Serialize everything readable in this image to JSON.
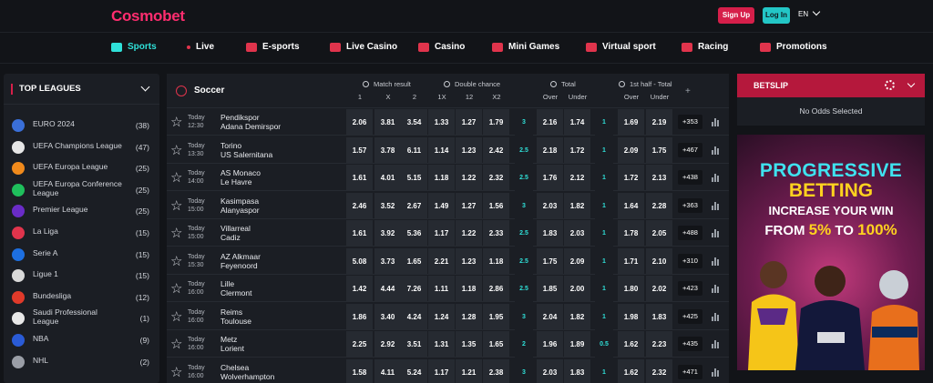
{
  "brand": {
    "logo_a": "Cosmo",
    "logo_b": "bet"
  },
  "header": {
    "signup": "Sign Up",
    "login": "Log In",
    "language": "EN"
  },
  "nav": [
    {
      "label": "Sports",
      "icon": "soccer-ball-icon",
      "active": true
    },
    {
      "label": "Live",
      "icon": "live-dot-icon"
    },
    {
      "label": "E-sports",
      "icon": "esports-icon"
    },
    {
      "label": "Live Casino",
      "icon": "cards-icon"
    },
    {
      "label": "Casino",
      "icon": "casino-icon"
    },
    {
      "label": "Mini Games",
      "icon": "joystick-icon"
    },
    {
      "label": "Virtual sport",
      "icon": "checkered-flag-icon"
    },
    {
      "label": "Racing",
      "icon": "horse-icon"
    },
    {
      "label": "Promotions",
      "icon": "promo-icon"
    }
  ],
  "leagues": {
    "title": "TOP LEAGUES",
    "items": [
      {
        "name": "EURO 2024",
        "count": "(38)",
        "color": "#3a6fd8"
      },
      {
        "name": "UEFA Champions League",
        "count": "(47)",
        "color": "#e6e6e6"
      },
      {
        "name": "UEFA Europa League",
        "count": "(25)",
        "color": "#f08a1c"
      },
      {
        "name": "UEFA Europa Conference League",
        "count": "(25)",
        "color": "#1fbf5c"
      },
      {
        "name": "Premier League",
        "count": "(25)",
        "color": "#6a2cc7"
      },
      {
        "name": "La Liga",
        "count": "(15)",
        "color": "#e0344c"
      },
      {
        "name": "Serie A",
        "count": "(15)",
        "color": "#1d6fe0"
      },
      {
        "name": "Ligue 1",
        "count": "(15)",
        "color": "#d9d9d9"
      },
      {
        "name": "Bundesliga",
        "count": "(12)",
        "color": "#e03a2a"
      },
      {
        "name": "Saudi Professional League",
        "count": "(1)",
        "color": "#e8e8e8"
      },
      {
        "name": "NBA",
        "count": "(9)",
        "color": "#2a5bd6"
      },
      {
        "name": "NHL",
        "count": "(2)",
        "color": "#9a9ea6"
      }
    ]
  },
  "main": {
    "sport": "Soccer",
    "groups": [
      "Match result",
      "Double chance",
      "Total",
      "1st half - Total"
    ],
    "sub": [
      "1",
      "X",
      "2",
      "1X",
      "12",
      "X2",
      "Over",
      "Under",
      "Over",
      "Under"
    ],
    "plus": "+",
    "matches": [
      {
        "day": "Today",
        "time": "12:30",
        "home": "Pendikspor",
        "away": "Adana Demirspor",
        "odds": [
          "2.06",
          "3.81",
          "3.54",
          "1.33",
          "1.27",
          "1.79"
        ],
        "total_line": "3",
        "total": [
          "2.16",
          "1.74"
        ],
        "half_line": "1",
        "half": [
          "1.69",
          "2.19"
        ],
        "more": "+353"
      },
      {
        "day": "Today",
        "time": "13:30",
        "home": "Torino",
        "away": "US Salernitana",
        "odds": [
          "1.57",
          "3.78",
          "6.11",
          "1.14",
          "1.23",
          "2.42"
        ],
        "total_line": "2.5",
        "total": [
          "2.18",
          "1.72"
        ],
        "half_line": "1",
        "half": [
          "2.09",
          "1.75"
        ],
        "more": "+467"
      },
      {
        "day": "Today",
        "time": "14:00",
        "home": "AS Monaco",
        "away": "Le Havre",
        "odds": [
          "1.61",
          "4.01",
          "5.15",
          "1.18",
          "1.22",
          "2.32"
        ],
        "total_line": "2.5",
        "total": [
          "1.76",
          "2.12"
        ],
        "half_line": "1",
        "half": [
          "1.72",
          "2.13"
        ],
        "more": "+438"
      },
      {
        "day": "Today",
        "time": "15:00",
        "home": "Kasimpasa",
        "away": "Alanyaspor",
        "odds": [
          "2.46",
          "3.52",
          "2.67",
          "1.49",
          "1.27",
          "1.56"
        ],
        "total_line": "3",
        "total": [
          "2.03",
          "1.82"
        ],
        "half_line": "1",
        "half": [
          "1.64",
          "2.28"
        ],
        "more": "+363"
      },
      {
        "day": "Today",
        "time": "15:00",
        "home": "Villarreal",
        "away": "Cadiz",
        "odds": [
          "1.61",
          "3.92",
          "5.36",
          "1.17",
          "1.22",
          "2.33"
        ],
        "total_line": "2.5",
        "total": [
          "1.83",
          "2.03"
        ],
        "half_line": "1",
        "half": [
          "1.78",
          "2.05"
        ],
        "more": "+488"
      },
      {
        "day": "Today",
        "time": "15:30",
        "home": "AZ Alkmaar",
        "away": "Feyenoord",
        "odds": [
          "5.08",
          "3.73",
          "1.65",
          "2.21",
          "1.23",
          "1.18"
        ],
        "total_line": "2.5",
        "total": [
          "1.75",
          "2.09"
        ],
        "half_line": "1",
        "half": [
          "1.71",
          "2.10"
        ],
        "more": "+310"
      },
      {
        "day": "Today",
        "time": "16:00",
        "home": "Lille",
        "away": "Clermont",
        "odds": [
          "1.42",
          "4.44",
          "7.26",
          "1.11",
          "1.18",
          "2.86"
        ],
        "total_line": "2.5",
        "total": [
          "1.85",
          "2.00"
        ],
        "half_line": "1",
        "half": [
          "1.80",
          "2.02"
        ],
        "more": "+423"
      },
      {
        "day": "Today",
        "time": "16:00",
        "home": "Reims",
        "away": "Toulouse",
        "odds": [
          "1.86",
          "3.40",
          "4.24",
          "1.24",
          "1.28",
          "1.95"
        ],
        "total_line": "3",
        "total": [
          "2.04",
          "1.82"
        ],
        "half_line": "1",
        "half": [
          "1.98",
          "1.83"
        ],
        "more": "+425"
      },
      {
        "day": "Today",
        "time": "16:00",
        "home": "Metz",
        "away": "Lorient",
        "odds": [
          "2.25",
          "2.92",
          "3.51",
          "1.31",
          "1.35",
          "1.65"
        ],
        "total_line": "2",
        "total": [
          "1.96",
          "1.89"
        ],
        "half_line": "0.5",
        "half": [
          "1.62",
          "2.23"
        ],
        "more": "+435"
      },
      {
        "day": "Today",
        "time": "16:00",
        "home": "Chelsea",
        "away": "Wolverhampton",
        "odds": [
          "1.58",
          "4.11",
          "5.24",
          "1.17",
          "1.21",
          "2.38"
        ],
        "total_line": "3",
        "total": [
          "2.03",
          "1.83"
        ],
        "half_line": "1",
        "half": [
          "1.62",
          "2.32"
        ],
        "more": "+471"
      }
    ]
  },
  "betslip": {
    "title": "BETSLIP",
    "empty": "No Odds Selected"
  },
  "banner": {
    "line1": "PROGRESSIVE",
    "line2": "BETTING",
    "line3": "INCREASE YOUR WIN",
    "line4_a": "FROM ",
    "line4_b": "5%",
    "line4_c": " TO ",
    "line4_d": "100%"
  },
  "colors": {
    "accent": "#2fe0d8",
    "brand": "#d61f4a",
    "panel": "#1b1e24",
    "cell": "#262a31"
  }
}
